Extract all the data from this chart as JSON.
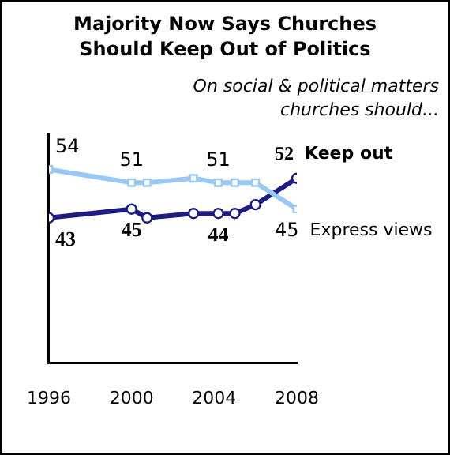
{
  "chart_data": {
    "type": "line",
    "title": "Majority Now Says Churches Should Keep Out of Politics",
    "annotations": [
      "On social & political matters churches should..."
    ],
    "x": [
      1996,
      2000,
      2000.75,
      2003,
      2004.2,
      2005,
      2006,
      2008
    ],
    "xlim": [
      1996,
      2008
    ],
    "xticks": [
      1996,
      2000,
      2004,
      2008
    ],
    "ylim": [
      10,
      62
    ],
    "tick_labels": "x",
    "grid": false,
    "legend": false,
    "line_style": "solid",
    "series": [
      {
        "name": "Keep out",
        "color": "#1c1c84",
        "marker": "circle",
        "values": [
          43,
          45,
          43,
          44,
          44,
          44,
          46,
          52
        ],
        "value_labels": [
          "43",
          "45",
          null,
          null,
          "44",
          null,
          null,
          "52"
        ]
      },
      {
        "name": "Express views",
        "color": "#99c8f4",
        "marker": "square",
        "values": [
          54,
          51,
          51,
          52,
          51,
          51,
          51,
          45
        ],
        "value_labels": [
          "54",
          "51",
          null,
          null,
          "51",
          null,
          null,
          "45"
        ]
      }
    ]
  }
}
